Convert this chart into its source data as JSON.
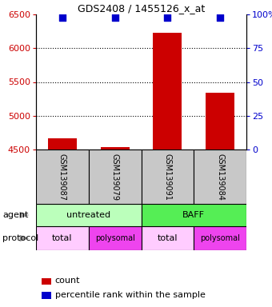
{
  "title": "GDS2408 / 1455126_x_at",
  "samples": [
    "GSM139087",
    "GSM139079",
    "GSM139091",
    "GSM139084"
  ],
  "bar_values": [
    4660,
    4540,
    6230,
    5340
  ],
  "bar_color": "#cc0000",
  "dot_color": "#0000cc",
  "ylim_left": [
    4500,
    6500
  ],
  "ylim_right": [
    0,
    100
  ],
  "yticks_left": [
    4500,
    5000,
    5500,
    6000,
    6500
  ],
  "yticks_right": [
    0,
    25,
    50,
    75,
    100
  ],
  "ytick_right_labels": [
    "0",
    "25",
    "50",
    "75",
    "100%"
  ],
  "grid_values": [
    5000,
    5500,
    6000
  ],
  "agent_spans": [
    [
      0,
      2,
      "untreated",
      "#bbffbb"
    ],
    [
      2,
      4,
      "BAFF",
      "#55ee55"
    ]
  ],
  "proto_info": [
    [
      0,
      1,
      "total",
      "#ffccff"
    ],
    [
      1,
      2,
      "polysomal",
      "#ee44ee"
    ],
    [
      2,
      3,
      "total",
      "#ffccff"
    ],
    [
      3,
      4,
      "polysomal",
      "#ee44ee"
    ]
  ],
  "row_label_agent": "agent",
  "row_label_protocol": "protocol",
  "legend_count": "count",
  "legend_percentile": "percentile rank within the sample",
  "left_axis_color": "#cc0000",
  "right_axis_color": "#0000cc",
  "bar_width": 0.55,
  "dot_size": 40,
  "sample_box_color": "#c8c8c8",
  "arrow_color": "#999999",
  "title_fontsize": 9,
  "axis_fontsize": 8,
  "legend_fontsize": 8,
  "sample_fontsize": 7,
  "proto_fontsize_total": 8,
  "proto_fontsize_poly": 7
}
